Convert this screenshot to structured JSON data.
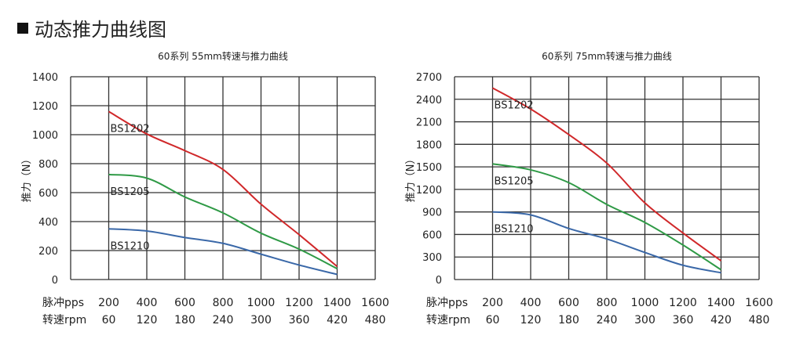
{
  "heading": "动态推力曲线图",
  "colors": {
    "BS1202": "#d0282a",
    "BS1205": "#2f9a46",
    "BS1210": "#3a68a8"
  },
  "chart_data": [
    {
      "type": "line",
      "title": "60系列 55mm转速与推力曲线",
      "ylabel": "推力（N）",
      "xlabel_rows": [
        {
          "label": "脉冲pps",
          "ticks": [
            "200",
            "400",
            "600",
            "800",
            "1000",
            "1200",
            "1400",
            "1600"
          ]
        },
        {
          "label": "转速rpm",
          "ticks": [
            "60",
            "120",
            "180",
            "240",
            "300",
            "360",
            "420",
            "480"
          ]
        }
      ],
      "xlim": [
        0,
        1600
      ],
      "ylim": [
        0,
        1400
      ],
      "yticks": [
        0,
        200,
        400,
        600,
        800,
        1000,
        1200,
        1400
      ],
      "grid": true,
      "x": [
        200,
        400,
        600,
        800,
        1000,
        1200,
        1400
      ],
      "series": [
        {
          "name": "BS1202",
          "values": [
            1160,
            1005,
            890,
            760,
            520,
            310,
            90
          ]
        },
        {
          "name": "BS1205",
          "values": [
            725,
            700,
            570,
            460,
            320,
            210,
            75
          ]
        },
        {
          "name": "BS1210",
          "values": [
            350,
            335,
            290,
            250,
            175,
            100,
            35
          ]
        }
      ]
    },
    {
      "type": "line",
      "title": "60系列 75mm转速与推力曲线",
      "ylabel": "推力（N）",
      "xlabel_rows": [
        {
          "label": "脉冲pps",
          "ticks": [
            "200",
            "400",
            "600",
            "800",
            "1000",
            "1200",
            "1400",
            "1600"
          ]
        },
        {
          "label": "转速rpm",
          "ticks": [
            "60",
            "120",
            "180",
            "240",
            "300",
            "360",
            "420",
            "480"
          ]
        }
      ],
      "xlim": [
        0,
        1600
      ],
      "ylim": [
        0,
        2700
      ],
      "yticks": [
        0,
        300,
        600,
        900,
        1200,
        1500,
        1800,
        2100,
        2400,
        2700
      ],
      "grid": true,
      "x": [
        200,
        400,
        600,
        800,
        1000,
        1200,
        1400
      ],
      "series": [
        {
          "name": "BS1202",
          "values": [
            2550,
            2270,
            1930,
            1550,
            1020,
            620,
            250
          ]
        },
        {
          "name": "BS1205",
          "values": [
            1540,
            1460,
            1290,
            1000,
            760,
            460,
            130
          ]
        },
        {
          "name": "BS1210",
          "values": [
            900,
            860,
            680,
            540,
            360,
            190,
            90
          ]
        }
      ]
    }
  ]
}
